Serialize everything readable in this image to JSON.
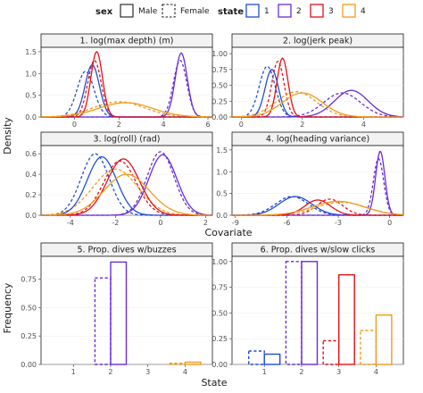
{
  "legend": {
    "sex_title": "sex",
    "sex_items": [
      {
        "label": "Male",
        "dash": "solid"
      },
      {
        "label": "Female",
        "dash": "dashed"
      }
    ],
    "state_title": "state",
    "state_items": [
      {
        "label": "1",
        "color": "#1f4fd1"
      },
      {
        "label": "2",
        "color": "#6a2bd9"
      },
      {
        "label": "3",
        "color": "#e0121b"
      },
      {
        "label": "4",
        "color": "#f39a1c"
      }
    ]
  },
  "axis_titles": {
    "density": "Density",
    "covariate": "Covariate",
    "frequency": "Frequency",
    "state": "State"
  },
  "chart_data": [
    {
      "type": "line",
      "title": "1. log(max depth) (m)",
      "xlim": [
        -1.5,
        6.2
      ],
      "ylim": [
        0,
        1.6
      ],
      "xticks": [
        0,
        2,
        4,
        6
      ],
      "yticks": [
        0.0,
        0.5,
        1.0,
        1.5
      ],
      "series": [
        {
          "state": "1",
          "sex": "Male",
          "mean": 0.8,
          "sd": 0.32,
          "peak": 1.2
        },
        {
          "state": "1",
          "sex": "Female",
          "mean": 0.5,
          "sd": 0.38,
          "peak": 1.05
        },
        {
          "state": "2",
          "sex": "Male",
          "mean": 4.8,
          "sd": 0.27,
          "peak": 1.47
        },
        {
          "state": "2",
          "sex": "Female",
          "mean": 4.75,
          "sd": 0.3,
          "peak": 1.3
        },
        {
          "state": "3",
          "sex": "Male",
          "mean": 1.0,
          "sd": 0.26,
          "peak": 1.5
        },
        {
          "state": "3",
          "sex": "Female",
          "mean": 0.9,
          "sd": 0.3,
          "peak": 1.3
        },
        {
          "state": "4",
          "sex": "Male",
          "mean": 2.3,
          "sd": 1.2,
          "peak": 0.33
        },
        {
          "state": "4",
          "sex": "Female",
          "mean": 2.0,
          "sd": 1.15,
          "peak": 0.35
        }
      ]
    },
    {
      "type": "line",
      "title": "2. log(jerk peak)",
      "xlim": [
        -0.3,
        5.3
      ],
      "ylim": [
        0,
        1.1
      ],
      "xticks": [
        0,
        2,
        4
      ],
      "yticks": [
        0.0,
        0.25,
        0.5,
        0.75,
        1.0
      ],
      "series": [
        {
          "state": "1",
          "sex": "Male",
          "mean": 1.0,
          "sd": 0.22,
          "peak": 0.75
        },
        {
          "state": "1",
          "sex": "Female",
          "mean": 0.85,
          "sd": 0.26,
          "peak": 0.8
        },
        {
          "state": "2",
          "sex": "Male",
          "mean": 3.6,
          "sd": 0.55,
          "peak": 0.42
        },
        {
          "state": "2",
          "sex": "Female",
          "mean": 3.3,
          "sd": 0.6,
          "peak": 0.38
        },
        {
          "state": "3",
          "sex": "Male",
          "mean": 1.35,
          "sd": 0.18,
          "peak": 0.93
        },
        {
          "state": "3",
          "sex": "Female",
          "mean": 1.2,
          "sd": 0.2,
          "peak": 0.88
        },
        {
          "state": "4",
          "sex": "Male",
          "mean": 2.0,
          "sd": 0.65,
          "peak": 0.38
        },
        {
          "state": "4",
          "sex": "Female",
          "mean": 1.8,
          "sd": 0.65,
          "peak": 0.4
        }
      ]
    },
    {
      "type": "line",
      "title": "3. log(roll) (rad)",
      "xlim": [
        -5.3,
        2.3
      ],
      "ylim": [
        0,
        0.68
      ],
      "xticks": [
        -4,
        -2,
        0,
        2
      ],
      "yticks": [
        0.0,
        0.2,
        0.4,
        0.6
      ],
      "series": [
        {
          "state": "1",
          "sex": "Male",
          "mean": -2.6,
          "sd": 0.65,
          "peak": 0.57
        },
        {
          "state": "1",
          "sex": "Female",
          "mean": -2.9,
          "sd": 0.62,
          "peak": 0.6
        },
        {
          "state": "2",
          "sex": "Male",
          "mean": 0.1,
          "sd": 0.62,
          "peak": 0.59
        },
        {
          "state": "2",
          "sex": "Female",
          "mean": 0.0,
          "sd": 0.6,
          "peak": 0.62
        },
        {
          "state": "3",
          "sex": "Male",
          "mean": -1.65,
          "sd": 0.72,
          "peak": 0.55
        },
        {
          "state": "3",
          "sex": "Female",
          "mean": -1.8,
          "sd": 0.72,
          "peak": 0.53
        },
        {
          "state": "4",
          "sex": "Male",
          "mean": -1.5,
          "sd": 1.0,
          "peak": 0.4
        },
        {
          "state": "4",
          "sex": "Female",
          "mean": -2.0,
          "sd": 1.0,
          "peak": 0.45
        }
      ]
    },
    {
      "type": "line",
      "title": "4. log(heading variance)",
      "xlim": [
        -9.2,
        0.8
      ],
      "ylim": [
        0,
        1.6
      ],
      "xticks": [
        -9,
        -6,
        -3,
        0
      ],
      "yticks": [
        0.0,
        0.5,
        1.0,
        1.5
      ],
      "series": [
        {
          "state": "1",
          "sex": "Male",
          "mean": -5.5,
          "sd": 0.95,
          "peak": 0.43
        },
        {
          "state": "1",
          "sex": "Female",
          "mean": -5.7,
          "sd": 0.95,
          "peak": 0.43
        },
        {
          "state": "2",
          "sex": "Male",
          "mean": -0.55,
          "sd": 0.27,
          "peak": 1.47
        },
        {
          "state": "2",
          "sex": "Female",
          "mean": -0.65,
          "sd": 0.3,
          "peak": 1.3
        },
        {
          "state": "3",
          "sex": "Male",
          "mean": -4.2,
          "sd": 0.75,
          "peak": 0.35
        },
        {
          "state": "3",
          "sex": "Female",
          "mean": -3.5,
          "sd": 0.75,
          "peak": 0.37
        },
        {
          "state": "4",
          "sex": "Male",
          "mean": -3.0,
          "sd": 1.5,
          "peak": 0.32
        },
        {
          "state": "4",
          "sex": "Female",
          "mean": -2.8,
          "sd": 1.45,
          "peak": 0.3
        }
      ]
    },
    {
      "type": "bar",
      "title": "5. Prop. dives w/buzzes",
      "categories": [
        "1",
        "2",
        "3",
        "4"
      ],
      "ylim": [
        0,
        0.95
      ],
      "yticks": [
        0.0,
        0.25,
        0.5,
        0.75
      ],
      "series": [
        {
          "sex": "Female",
          "dash": "dashed",
          "values": [
            0.0,
            0.76,
            0.0,
            0.01
          ]
        },
        {
          "sex": "Male",
          "dash": "solid",
          "values": [
            0.0,
            0.9,
            0.0,
            0.02
          ]
        }
      ]
    },
    {
      "type": "bar",
      "title": "6. Prop. dives w/slow clicks",
      "categories": [
        "1",
        "2",
        "3",
        "4"
      ],
      "ylim": [
        0,
        1.05
      ],
      "yticks": [
        0.0,
        0.25,
        0.5,
        0.75,
        1.0
      ],
      "series": [
        {
          "sex": "Female",
          "dash": "dashed",
          "values": [
            0.13,
            1.0,
            0.23,
            0.33
          ]
        },
        {
          "sex": "Male",
          "dash": "solid",
          "values": [
            0.1,
            1.0,
            0.87,
            0.48
          ]
        }
      ]
    }
  ]
}
